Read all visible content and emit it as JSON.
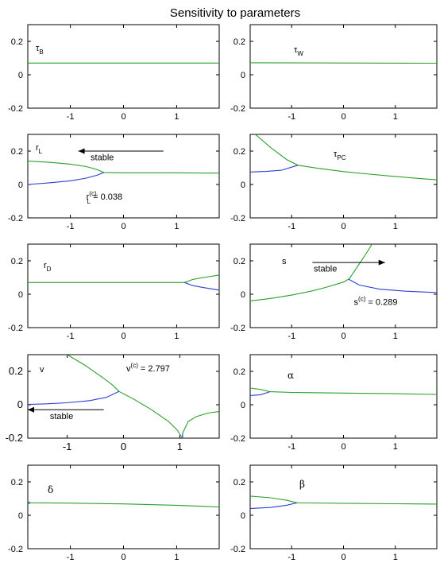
{
  "title": "Sensitivity to parameters",
  "colors": {
    "stable": "#2aa02a",
    "unstable": "#2b3fd4"
  },
  "chart_data": [
    {
      "type": "line",
      "label": {
        "main": "τ",
        "sub": "B"
      },
      "xlim": [
        -1.8,
        1.8
      ],
      "ylim": [
        -0.2,
        0.3
      ],
      "xticks": [
        "-1",
        "0",
        "1"
      ],
      "yticks": [
        "0.2",
        "0",
        "-0.2"
      ],
      "series": [
        {
          "color": "stable",
          "points": [
            [
              -1.8,
              0.07
            ],
            [
              1.8,
              0.07
            ]
          ]
        }
      ],
      "annotations": []
    },
    {
      "type": "line",
      "label": {
        "main": "τ",
        "sub": "W"
      },
      "xlim": [
        -1.8,
        1.8
      ],
      "ylim": [
        -0.2,
        0.3
      ],
      "xticks": [
        "-1",
        "0",
        "1"
      ],
      "yticks": [
        "0.2",
        "0",
        "-0.2"
      ],
      "series": [
        {
          "color": "stable",
          "points": [
            [
              -1.8,
              0.072
            ],
            [
              1.8,
              0.069
            ]
          ]
        }
      ],
      "annotations": []
    },
    {
      "type": "line",
      "label": {
        "main": "r",
        "sub": "L"
      },
      "xlim": [
        -1.8,
        1.8
      ],
      "ylim": [
        -0.2,
        0.3
      ],
      "xticks": [
        "-1",
        "0",
        "1"
      ],
      "yticks": [
        "0.2",
        "0",
        "-0.2"
      ],
      "series": [
        {
          "color": "stable",
          "points": [
            [
              -1.8,
              0.14
            ],
            [
              -1.4,
              0.133
            ],
            [
              -1.0,
              0.122
            ],
            [
              -0.7,
              0.107
            ],
            [
              -0.5,
              0.09
            ],
            [
              -0.37,
              0.072
            ],
            [
              0.0,
              0.07
            ],
            [
              1.0,
              0.07
            ],
            [
              1.8,
              0.068
            ]
          ]
        },
        {
          "color": "unstable",
          "points": [
            [
              -1.8,
              0.0
            ],
            [
              -1.4,
              0.01
            ],
            [
              -1.0,
              0.022
            ],
            [
              -0.7,
              0.038
            ],
            [
              -0.5,
              0.055
            ],
            [
              -0.37,
              0.072
            ]
          ]
        }
      ],
      "annotations": [
        {
          "type": "arrow",
          "from": [
            0.75,
            0.2
          ],
          "to": [
            -0.85,
            0.2
          ]
        },
        {
          "type": "text",
          "text": "stable",
          "at": [
            -0.4,
            0.145
          ]
        },
        {
          "type": "rtext",
          "main": "r",
          "sub": "L",
          "sup": "(c)",
          "rest": " = 0.038",
          "at": [
            -0.7,
            -0.09
          ]
        }
      ]
    },
    {
      "type": "line",
      "label": {
        "main": "τ",
        "sub": "PC"
      },
      "xlim": [
        -1.8,
        1.8
      ],
      "ylim": [
        -0.2,
        0.3
      ],
      "xticks": [
        "-1",
        "0",
        "1"
      ],
      "yticks": [
        "0.2",
        "0",
        "-0.2"
      ],
      "series": [
        {
          "color": "stable",
          "points": [
            [
              -1.7,
              0.3
            ],
            [
              -1.4,
              0.22
            ],
            [
              -1.1,
              0.15
            ],
            [
              -0.88,
              0.115
            ],
            [
              -0.5,
              0.097
            ],
            [
              0.0,
              0.077
            ],
            [
              0.5,
              0.062
            ],
            [
              1.0,
              0.048
            ],
            [
              1.5,
              0.035
            ],
            [
              1.8,
              0.028
            ]
          ]
        },
        {
          "color": "unstable",
          "points": [
            [
              -1.8,
              0.075
            ],
            [
              -1.5,
              0.078
            ],
            [
              -1.2,
              0.085
            ],
            [
              -0.88,
              0.115
            ]
          ]
        }
      ],
      "annotations": []
    },
    {
      "type": "line",
      "label": {
        "main": "r",
        "sub": "D"
      },
      "xlim": [
        -1.8,
        1.8
      ],
      "ylim": [
        -0.2,
        0.3
      ],
      "xticks": [
        "-1",
        "0",
        "1"
      ],
      "yticks": [
        "0.2",
        "0",
        "-0.2"
      ],
      "series": [
        {
          "color": "stable",
          "points": [
            [
              -1.8,
              0.07
            ],
            [
              0.0,
              0.07
            ],
            [
              1.15,
              0.07
            ],
            [
              1.3,
              0.088
            ],
            [
              1.5,
              0.1
            ],
            [
              1.8,
              0.115
            ]
          ]
        },
        {
          "color": "unstable",
          "points": [
            [
              1.15,
              0.07
            ],
            [
              1.3,
              0.052
            ],
            [
              1.5,
              0.04
            ],
            [
              1.8,
              0.025
            ]
          ]
        }
      ],
      "annotations": []
    },
    {
      "type": "line",
      "label": {
        "main": "s",
        "sub": ""
      },
      "xlim": [
        -1.8,
        1.8
      ],
      "ylim": [
        -0.2,
        0.3
      ],
      "xticks": [
        "-1",
        "0",
        "1"
      ],
      "yticks": [
        "0.2",
        "0",
        "-0.2"
      ],
      "series": [
        {
          "color": "stable",
          "points": [
            [
              -1.8,
              -0.04
            ],
            [
              -1.4,
              -0.025
            ],
            [
              -1.0,
              -0.005
            ],
            [
              -0.6,
              0.02
            ],
            [
              -0.3,
              0.045
            ],
            [
              0.0,
              0.073
            ],
            [
              0.1,
              0.09
            ],
            [
              0.15,
              0.11
            ],
            [
              0.3,
              0.18
            ],
            [
              0.45,
              0.25
            ],
            [
              0.55,
              0.3
            ]
          ]
        },
        {
          "color": "unstable",
          "points": [
            [
              0.1,
              0.09
            ],
            [
              0.3,
              0.055
            ],
            [
              0.7,
              0.03
            ],
            [
              1.2,
              0.018
            ],
            [
              1.8,
              0.01
            ]
          ]
        }
      ],
      "annotations": [
        {
          "type": "arrow",
          "from": [
            -0.6,
            0.19
          ],
          "to": [
            0.8,
            0.19
          ]
        },
        {
          "type": "text",
          "text": "stable",
          "at": [
            -0.35,
            0.135
          ]
        },
        {
          "type": "rtext",
          "main": "s",
          "sub": "",
          "sup": "(c)",
          "rest": " = 0.289",
          "at": [
            0.2,
            -0.065
          ]
        }
      ]
    },
    {
      "type": "line",
      "label": {
        "main": "v",
        "sub": ""
      },
      "xlim": [
        -1.7,
        1.7
      ],
      "ylim": [
        -0.2,
        0.3
      ],
      "xticks": [
        "-1",
        "0",
        "1"
      ],
      "yticks": [
        "0.2",
        "0",
        "-0.2"
      ],
      "series": [
        {
          "color": "stable",
          "points": [
            [
              -1.0,
              0.3
            ],
            [
              -0.7,
              0.24
            ],
            [
              -0.4,
              0.17
            ],
            [
              -0.2,
              0.12
            ],
            [
              -0.08,
              0.08
            ],
            [
              0.2,
              0.03
            ],
            [
              0.5,
              -0.03
            ],
            [
              0.8,
              -0.1
            ],
            [
              0.95,
              -0.15
            ],
            [
              1.05,
              -0.2
            ]
          ]
        },
        {
          "color": "stable",
          "points": [
            [
              1.05,
              -0.17
            ],
            [
              1.15,
              -0.1
            ],
            [
              1.3,
              -0.07
            ],
            [
              1.5,
              -0.05
            ],
            [
              1.7,
              -0.04
            ]
          ]
        },
        {
          "color": "unstable",
          "points": [
            [
              -1.7,
              0.002
            ],
            [
              -1.4,
              0.005
            ],
            [
              -1.0,
              0.012
            ],
            [
              -0.6,
              0.025
            ],
            [
              -0.3,
              0.045
            ],
            [
              -0.08,
              0.08
            ]
          ]
        },
        {
          "color": "unstable",
          "points": [
            [
              1.05,
              -0.17
            ],
            [
              1.05,
              -0.2
            ]
          ]
        }
      ],
      "annotations": [
        {
          "type": "arrow",
          "from": [
            -0.35,
            -0.03
          ],
          "to": [
            -1.7,
            -0.03
          ]
        },
        {
          "type": "text",
          "text": "stable",
          "at": [
            -1.1,
            -0.085
          ]
        },
        {
          "type": "rtext",
          "main": "v",
          "sub": "",
          "sup": "(c)",
          "rest": " = 2.797",
          "at": [
            0.05,
            0.2
          ]
        }
      ]
    },
    {
      "type": "line",
      "label": {
        "main": "α",
        "sub": ""
      },
      "xlim": [
        -1.8,
        1.8
      ],
      "ylim": [
        -0.2,
        0.3
      ],
      "xticks": [
        "-1",
        "0",
        "1"
      ],
      "yticks": [
        "0.2",
        "0",
        "-0.2"
      ],
      "series": [
        {
          "color": "stable",
          "points": [
            [
              -1.8,
              0.1
            ],
            [
              -1.6,
              0.092
            ],
            [
              -1.42,
              0.078
            ],
            [
              -1.0,
              0.074
            ],
            [
              0.0,
              0.07
            ],
            [
              1.0,
              0.066
            ],
            [
              1.8,
              0.062
            ]
          ]
        },
        {
          "color": "unstable",
          "points": [
            [
              -1.8,
              0.055
            ],
            [
              -1.6,
              0.06
            ],
            [
              -1.42,
              0.078
            ]
          ]
        }
      ],
      "annotations": []
    },
    {
      "type": "line",
      "label": {
        "main": "δ",
        "sub": ""
      },
      "xlim": [
        -1.8,
        1.8
      ],
      "ylim": [
        -0.2,
        0.3
      ],
      "xticks": [
        "-1",
        "0",
        "1"
      ],
      "yticks": [
        "0.2",
        "0",
        "-0.2"
      ],
      "series": [
        {
          "color": "stable",
          "points": [
            [
              -1.8,
              0.082
            ],
            [
              -1.75,
              0.075
            ],
            [
              -1.0,
              0.073
            ],
            [
              0.0,
              0.068
            ],
            [
              1.0,
              0.06
            ],
            [
              1.8,
              0.05
            ]
          ]
        },
        {
          "color": "unstable",
          "points": [
            [
              -1.8,
              0.068
            ],
            [
              -1.75,
              0.075
            ]
          ]
        }
      ],
      "annotations": []
    },
    {
      "type": "line",
      "label": {
        "main": "β",
        "sub": ""
      },
      "xlim": [
        -1.8,
        1.8
      ],
      "ylim": [
        -0.2,
        0.3
      ],
      "xticks": [
        "-1",
        "0",
        "1"
      ],
      "yticks": [
        "0.2",
        "0",
        "-0.2"
      ],
      "series": [
        {
          "color": "stable",
          "points": [
            [
              -1.8,
              0.115
            ],
            [
              -1.4,
              0.105
            ],
            [
              -1.1,
              0.09
            ],
            [
              -0.9,
              0.075
            ],
            [
              0.0,
              0.072
            ],
            [
              1.0,
              0.069
            ],
            [
              1.8,
              0.067
            ]
          ]
        },
        {
          "color": "unstable",
          "points": [
            [
              -1.8,
              0.04
            ],
            [
              -1.4,
              0.047
            ],
            [
              -1.1,
              0.06
            ],
            [
              -0.9,
              0.075
            ]
          ]
        }
      ],
      "annotations": []
    }
  ]
}
